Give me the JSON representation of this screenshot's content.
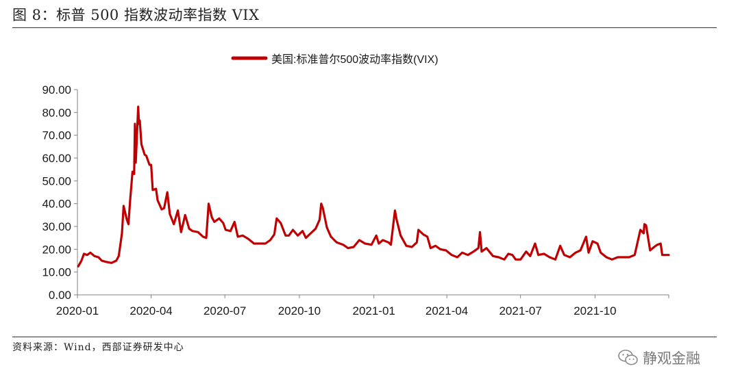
{
  "figure": {
    "title": "图 8：标普 500 指数波动率指数 VIX",
    "source": "资料来源：Wind，西部证券研发中心",
    "watermark": "静观金融",
    "watermark_icon": "wechat-icon"
  },
  "chart_data": {
    "type": "line",
    "title": "",
    "xlabel": "",
    "ylabel": "",
    "legend_position": "top-center",
    "grid": false,
    "colors": {
      "series": "#c00000",
      "axis": "#808080",
      "text": "#1a1a1a"
    },
    "ylim": [
      0,
      90
    ],
    "y_ticks": [
      "0.00",
      "10.00",
      "20.00",
      "30.00",
      "40.00",
      "50.00",
      "60.00",
      "70.00",
      "80.00",
      "90.00"
    ],
    "x_tick_labels": [
      "2020-01",
      "2020-04",
      "2020-07",
      "2020-10",
      "2021-01",
      "2021-04",
      "2021-07",
      "2021-10"
    ],
    "xlim": [
      "2020-01-01",
      "2021-12-31"
    ],
    "series": [
      {
        "name": "美国:标准普尔500波动率指数(VIX)",
        "points": [
          [
            "2020-01-02",
            12.5
          ],
          [
            "2020-01-06",
            15.0
          ],
          [
            "2020-01-09",
            18.0
          ],
          [
            "2020-01-13",
            17.5
          ],
          [
            "2020-01-17",
            18.5
          ],
          [
            "2020-01-22",
            17.0
          ],
          [
            "2020-01-27",
            16.5
          ],
          [
            "2020-01-31",
            15.0
          ],
          [
            "2020-02-05",
            14.5
          ],
          [
            "2020-02-12",
            14.0
          ],
          [
            "2020-02-18",
            15.0
          ],
          [
            "2020-02-21",
            17.0
          ],
          [
            "2020-02-25",
            27.0
          ],
          [
            "2020-02-27",
            39.0
          ],
          [
            "2020-03-02",
            33.0
          ],
          [
            "2020-03-04",
            31.0
          ],
          [
            "2020-03-06",
            41.0
          ],
          [
            "2020-03-09",
            54.0
          ],
          [
            "2020-03-11",
            53.0
          ],
          [
            "2020-03-12",
            75.0
          ],
          [
            "2020-03-13",
            58.0
          ],
          [
            "2020-03-16",
            82.5
          ],
          [
            "2020-03-17",
            75.0
          ],
          [
            "2020-03-18",
            76.5
          ],
          [
            "2020-03-20",
            66.0
          ],
          [
            "2020-03-24",
            61.5
          ],
          [
            "2020-03-26",
            61.0
          ],
          [
            "2020-03-30",
            57.0
          ],
          [
            "2020-04-01",
            57.0
          ],
          [
            "2020-04-03",
            46.0
          ],
          [
            "2020-04-07",
            46.5
          ],
          [
            "2020-04-09",
            41.5
          ],
          [
            "2020-04-14",
            37.5
          ],
          [
            "2020-04-17",
            38.0
          ],
          [
            "2020-04-21",
            45.0
          ],
          [
            "2020-04-24",
            35.5
          ],
          [
            "2020-04-29",
            31.0
          ],
          [
            "2020-05-04",
            37.0
          ],
          [
            "2020-05-08",
            27.5
          ],
          [
            "2020-05-13",
            35.0
          ],
          [
            "2020-05-18",
            29.0
          ],
          [
            "2020-05-22",
            28.0
          ],
          [
            "2020-05-29",
            27.5
          ],
          [
            "2020-06-04",
            25.5
          ],
          [
            "2020-06-08",
            25.0
          ],
          [
            "2020-06-11",
            40.0
          ],
          [
            "2020-06-15",
            34.0
          ],
          [
            "2020-06-18",
            32.0
          ],
          [
            "2020-06-24",
            33.5
          ],
          [
            "2020-06-29",
            31.5
          ],
          [
            "2020-07-02",
            28.5
          ],
          [
            "2020-07-08",
            28.0
          ],
          [
            "2020-07-13",
            32.0
          ],
          [
            "2020-07-17",
            25.5
          ],
          [
            "2020-07-23",
            26.0
          ],
          [
            "2020-07-30",
            24.5
          ],
          [
            "2020-08-06",
            22.5
          ],
          [
            "2020-08-13",
            22.5
          ],
          [
            "2020-08-20",
            22.5
          ],
          [
            "2020-08-26",
            24.0
          ],
          [
            "2020-08-31",
            26.5
          ],
          [
            "2020-09-03",
            33.5
          ],
          [
            "2020-09-08",
            31.5
          ],
          [
            "2020-09-14",
            26.0
          ],
          [
            "2020-09-18",
            26.0
          ],
          [
            "2020-09-23",
            28.5
          ],
          [
            "2020-09-29",
            26.0
          ],
          [
            "2020-10-05",
            28.0
          ],
          [
            "2020-10-09",
            25.0
          ],
          [
            "2020-10-15",
            27.0
          ],
          [
            "2020-10-21",
            29.0
          ],
          [
            "2020-10-26",
            33.0
          ],
          [
            "2020-10-28",
            40.0
          ],
          [
            "2020-10-30",
            38.0
          ],
          [
            "2020-11-04",
            29.5
          ],
          [
            "2020-11-09",
            25.5
          ],
          [
            "2020-11-16",
            23.0
          ],
          [
            "2020-11-24",
            22.0
          ],
          [
            "2020-11-30",
            20.5
          ],
          [
            "2020-12-07",
            21.0
          ],
          [
            "2020-12-14",
            24.0
          ],
          [
            "2020-12-21",
            22.5
          ],
          [
            "2020-12-29",
            22.0
          ],
          [
            "2021-01-04",
            26.0
          ],
          [
            "2021-01-07",
            22.5
          ],
          [
            "2021-01-12",
            24.0
          ],
          [
            "2021-01-19",
            23.0
          ],
          [
            "2021-01-22",
            22.0
          ],
          [
            "2021-01-27",
            37.0
          ],
          [
            "2021-01-29",
            33.0
          ],
          [
            "2021-02-03",
            26.0
          ],
          [
            "2021-02-10",
            21.5
          ],
          [
            "2021-02-17",
            21.0
          ],
          [
            "2021-02-23",
            23.0
          ],
          [
            "2021-02-25",
            28.5
          ],
          [
            "2021-03-03",
            26.5
          ],
          [
            "2021-03-08",
            25.5
          ],
          [
            "2021-03-12",
            20.5
          ],
          [
            "2021-03-18",
            21.5
          ],
          [
            "2021-03-24",
            20.0
          ],
          [
            "2021-03-31",
            19.5
          ],
          [
            "2021-04-07",
            17.5
          ],
          [
            "2021-04-14",
            16.5
          ],
          [
            "2021-04-20",
            18.5
          ],
          [
            "2021-04-27",
            17.5
          ],
          [
            "2021-05-04",
            19.0
          ],
          [
            "2021-05-10",
            20.5
          ],
          [
            "2021-05-12",
            27.5
          ],
          [
            "2021-05-14",
            19.0
          ],
          [
            "2021-05-20",
            20.5
          ],
          [
            "2021-05-28",
            17.0
          ],
          [
            "2021-06-04",
            16.5
          ],
          [
            "2021-06-11",
            15.5
          ],
          [
            "2021-06-16",
            18.0
          ],
          [
            "2021-06-21",
            17.5
          ],
          [
            "2021-06-25",
            15.5
          ],
          [
            "2021-07-01",
            15.5
          ],
          [
            "2021-07-08",
            19.0
          ],
          [
            "2021-07-13",
            17.0
          ],
          [
            "2021-07-19",
            22.5
          ],
          [
            "2021-07-23",
            17.5
          ],
          [
            "2021-07-30",
            18.0
          ],
          [
            "2021-08-06",
            16.5
          ],
          [
            "2021-08-13",
            15.5
          ],
          [
            "2021-08-19",
            21.5
          ],
          [
            "2021-08-24",
            17.5
          ],
          [
            "2021-08-31",
            16.5
          ],
          [
            "2021-09-07",
            18.5
          ],
          [
            "2021-09-13",
            19.5
          ],
          [
            "2021-09-20",
            25.5
          ],
          [
            "2021-09-23",
            18.5
          ],
          [
            "2021-09-28",
            23.5
          ],
          [
            "2021-10-04",
            22.5
          ],
          [
            "2021-10-08",
            18.5
          ],
          [
            "2021-10-15",
            16.5
          ],
          [
            "2021-10-22",
            15.5
          ],
          [
            "2021-10-29",
            16.5
          ],
          [
            "2021-11-05",
            16.5
          ],
          [
            "2021-11-12",
            16.5
          ],
          [
            "2021-11-19",
            17.5
          ],
          [
            "2021-11-26",
            28.5
          ],
          [
            "2021-11-30",
            27.0
          ],
          [
            "2021-12-01",
            31.0
          ],
          [
            "2021-12-03",
            30.5
          ],
          [
            "2021-12-08",
            19.5
          ],
          [
            "2021-12-13",
            21.0
          ],
          [
            "2021-12-17",
            22.0
          ],
          [
            "2021-12-21",
            22.5
          ],
          [
            "2021-12-23",
            17.5
          ],
          [
            "2021-12-27",
            17.5
          ],
          [
            "2021-12-31",
            17.5
          ]
        ]
      }
    ]
  }
}
